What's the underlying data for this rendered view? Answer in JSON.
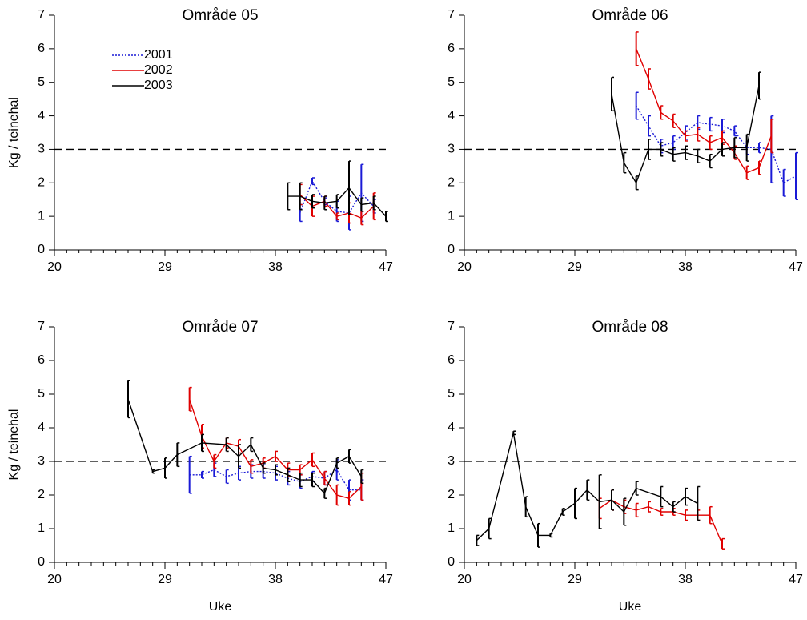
{
  "chart_data": [
    {
      "type": "line",
      "title": "Område 05",
      "ylabel": "Kg / teinehal",
      "xlim": [
        20,
        47
      ],
      "xticks": [
        20,
        29,
        38,
        47
      ],
      "xminorstep": 1,
      "ylim": [
        0,
        7
      ],
      "yticks": [
        0,
        1,
        2,
        3,
        4,
        5,
        6,
        7
      ],
      "hline": 3,
      "legend": "upper-left",
      "series": [
        {
          "name": "2001",
          "color": "#1a1ad6",
          "linestyle": "dotted",
          "x": [
            40,
            41,
            42,
            43,
            44,
            45,
            46
          ],
          "values": [
            1.1,
            2.05,
            1.45,
            1.15,
            1.1,
            1.7,
            1.3
          ],
          "errors": [
            0.25,
            0.1,
            0.1,
            0.3,
            0.5,
            0.85,
            0.2
          ]
        },
        {
          "name": "2002",
          "color": "#e00000",
          "linestyle": "solid",
          "x": [
            40,
            41,
            42,
            43,
            44,
            45,
            46
          ],
          "values": [
            1.65,
            1.3,
            1.45,
            1.0,
            1.1,
            0.95,
            1.3
          ],
          "errors": [
            0.3,
            0.3,
            0.15,
            0.1,
            0.3,
            0.2,
            0.4
          ]
        },
        {
          "name": "2003",
          "color": "#000000",
          "linestyle": "solid",
          "x": [
            39,
            40,
            41,
            42,
            43,
            44,
            45,
            46,
            47
          ],
          "values": [
            1.6,
            1.6,
            1.45,
            1.4,
            1.45,
            1.85,
            1.35,
            1.4,
            1.0
          ],
          "errors": [
            0.4,
            0.4,
            0.2,
            0.2,
            0.2,
            0.8,
            0.2,
            0.2,
            0.15
          ]
        }
      ]
    },
    {
      "type": "line",
      "title": "Område 06",
      "xlim": [
        20,
        47
      ],
      "xticks": [
        20,
        29,
        38,
        47
      ],
      "xminorstep": 1,
      "ylim": [
        0,
        7
      ],
      "yticks": [
        0,
        1,
        2,
        3,
        4,
        5,
        6,
        7
      ],
      "hline": 3,
      "series": [
        {
          "color": "#1a1ad6",
          "linestyle": "dotted",
          "x": [
            34,
            35,
            36,
            37,
            38,
            39,
            40,
            41,
            42,
            43,
            44,
            45,
            46,
            47
          ],
          "values": [
            4.3,
            3.7,
            3.1,
            3.2,
            3.5,
            3.8,
            3.75,
            3.7,
            3.55,
            3.05,
            3.05,
            3.0,
            2.0,
            2.2
          ],
          "errors": [
            0.4,
            0.3,
            0.2,
            0.2,
            0.2,
            0.2,
            0.2,
            0.2,
            0.15,
            0.2,
            0.15,
            1.0,
            0.4,
            0.7
          ]
        },
        {
          "color": "#e00000",
          "linestyle": "solid",
          "x": [
            34,
            35,
            36,
            37,
            38,
            39,
            40,
            41,
            42,
            43,
            44,
            45
          ],
          "values": [
            6.0,
            5.1,
            4.1,
            3.85,
            3.4,
            3.45,
            3.2,
            3.35,
            2.9,
            2.3,
            2.45,
            3.4
          ],
          "errors": [
            0.5,
            0.3,
            0.2,
            0.2,
            0.15,
            0.2,
            0.2,
            0.2,
            0.2,
            0.2,
            0.2,
            0.5
          ]
        },
        {
          "color": "#000000",
          "linestyle": "solid",
          "x": [
            32,
            33,
            34,
            35,
            36,
            37,
            38,
            39,
            40,
            41,
            42,
            43,
            44
          ],
          "values": [
            4.65,
            2.6,
            2.0,
            3.0,
            3.0,
            2.85,
            2.9,
            2.8,
            2.65,
            3.0,
            3.05,
            3.05,
            4.9
          ],
          "errors": [
            0.5,
            0.3,
            0.2,
            0.3,
            0.2,
            0.2,
            0.2,
            0.2,
            0.2,
            0.2,
            0.3,
            0.4,
            0.4
          ]
        }
      ]
    },
    {
      "type": "line",
      "title": "Område 07",
      "ylabel": "Kg / teinehal",
      "xlabel": "Uke",
      "xlim": [
        20,
        47
      ],
      "xticks": [
        20,
        29,
        38,
        47
      ],
      "xminorstep": 1,
      "ylim": [
        0,
        7
      ],
      "yticks": [
        0,
        1,
        2,
        3,
        4,
        5,
        6,
        7
      ],
      "hline": 3,
      "series": [
        {
          "color": "#1a1ad6",
          "linestyle": "dotted",
          "x": [
            31,
            32,
            33,
            34,
            35,
            36,
            37,
            38,
            39,
            40,
            41,
            42,
            43,
            44,
            45
          ],
          "values": [
            2.6,
            2.6,
            2.75,
            2.55,
            2.65,
            2.7,
            2.7,
            2.65,
            2.5,
            2.4,
            2.55,
            2.5,
            2.75,
            2.15,
            2.15
          ],
          "errors": [
            0.55,
            0.1,
            0.2,
            0.2,
            0.2,
            0.2,
            0.2,
            0.2,
            0.2,
            0.2,
            0.15,
            0.2,
            0.3,
            0.3,
            0.3
          ]
        },
        {
          "color": "#e00000",
          "linestyle": "solid",
          "x": [
            31,
            32,
            33,
            34,
            35,
            36,
            37,
            38,
            39,
            40,
            41,
            42,
            43,
            44,
            45
          ],
          "values": [
            4.85,
            3.75,
            3.0,
            3.55,
            3.45,
            2.85,
            2.95,
            3.15,
            2.75,
            2.75,
            3.05,
            2.5,
            2.0,
            1.9,
            2.25
          ],
          "errors": [
            0.35,
            0.35,
            0.2,
            0.15,
            0.2,
            0.2,
            0.15,
            0.15,
            0.2,
            0.15,
            0.2,
            0.2,
            0.3,
            0.2,
            0.4
          ]
        },
        {
          "color": "#000000",
          "linestyle": "solid",
          "x": [
            26,
            28,
            29,
            30,
            32,
            34,
            35,
            36,
            37,
            38,
            39,
            40,
            41,
            42,
            43,
            44,
            45
          ],
          "values": [
            4.85,
            2.7,
            2.8,
            3.2,
            3.55,
            3.5,
            3.15,
            3.5,
            2.8,
            2.75,
            2.6,
            2.45,
            2.45,
            2.05,
            2.95,
            3.15,
            2.55
          ],
          "errors": [
            0.55,
            0.05,
            0.3,
            0.35,
            0.25,
            0.2,
            0.35,
            0.2,
            0.15,
            0.15,
            0.2,
            0.2,
            0.2,
            0.15,
            0.15,
            0.2,
            0.2
          ]
        }
      ]
    },
    {
      "type": "line",
      "title": "Område 08",
      "xlabel": "Uke",
      "xlim": [
        20,
        47
      ],
      "xticks": [
        20,
        29,
        38,
        47
      ],
      "xminorstep": 1,
      "ylim": [
        0,
        7
      ],
      "yticks": [
        0,
        1,
        2,
        3,
        4,
        5,
        6,
        7
      ],
      "hline": 3,
      "series": [
        {
          "color": "#e00000",
          "linestyle": "solid",
          "x": [
            31,
            32,
            33,
            34,
            35,
            36,
            37,
            38,
            39,
            40,
            41
          ],
          "values": [
            1.6,
            1.85,
            1.65,
            1.55,
            1.65,
            1.5,
            1.5,
            1.4,
            1.4,
            1.4,
            0.55
          ],
          "errors": [
            0.3,
            0.3,
            0.2,
            0.2,
            0.15,
            0.1,
            0.1,
            0.15,
            0.15,
            0.25,
            0.15
          ]
        },
        {
          "color": "#000000",
          "linestyle": "solid",
          "x": [
            21,
            22,
            24,
            25,
            26,
            27,
            28,
            29,
            30,
            31,
            32,
            33,
            34,
            36,
            37,
            38,
            39
          ],
          "values": [
            0.65,
            1.0,
            3.85,
            1.65,
            0.8,
            0.8,
            1.5,
            1.75,
            2.15,
            1.8,
            1.85,
            1.5,
            2.2,
            1.95,
            1.65,
            1.95,
            1.75
          ],
          "errors": [
            0.15,
            0.3,
            0.05,
            0.3,
            0.35,
            0.05,
            0.1,
            0.45,
            0.3,
            0.8,
            0.3,
            0.4,
            0.2,
            0.3,
            0.15,
            0.25,
            0.5
          ]
        }
      ]
    }
  ]
}
